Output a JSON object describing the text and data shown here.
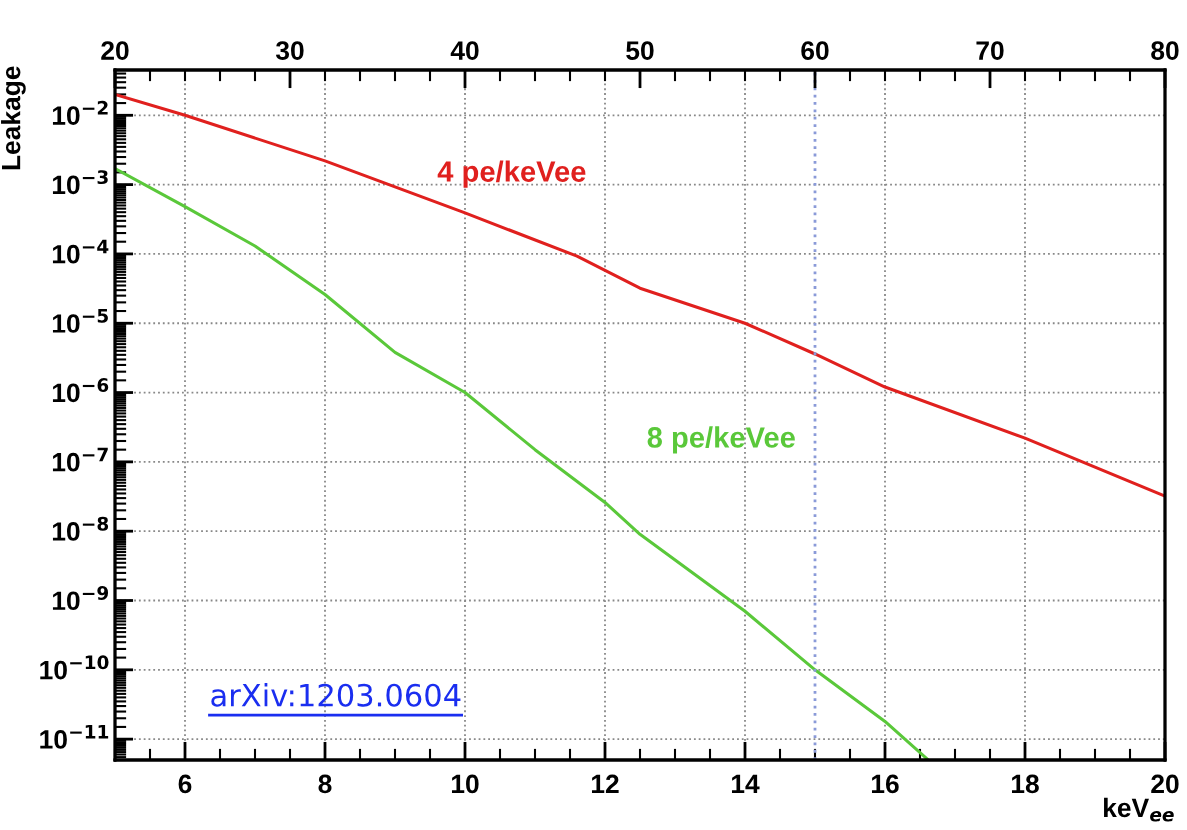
{
  "chart_data": {
    "type": "line",
    "ylabel": "Leakage",
    "xlabel": "keV$_{ee}$",
    "log": "y",
    "grid": true,
    "legend": false,
    "marker": "none",
    "line_style": "solid",
    "xlim": [
      5,
      20
    ],
    "xticks": [
      6,
      8,
      10,
      12,
      14,
      16,
      18,
      20
    ],
    "x2lim": [
      20,
      80
    ],
    "x2ticks": [
      20,
      30,
      40,
      50,
      60,
      70,
      80
    ],
    "ylim": [
      5e-12,
      0.045
    ],
    "yticks": [
      {
        "value": 0.01,
        "label": "10$^{−2}$"
      },
      {
        "value": 0.001,
        "label": "10$^{−3}$"
      },
      {
        "value": 0.0001,
        "label": "10$^{−4}$"
      },
      {
        "value": 1e-05,
        "label": "10$^{−5}$"
      },
      {
        "value": 1e-06,
        "label": "10$^{−6}$"
      },
      {
        "value": 1e-07,
        "label": "10$^{−7}$"
      },
      {
        "value": 1e-08,
        "label": "10$^{−8}$"
      },
      {
        "value": 1e-09,
        "label": "10$^{−9}$"
      },
      {
        "value": 1e-10,
        "label": "10$^{−10}$"
      },
      {
        "value": 1e-11,
        "label": "10$^{−11}$"
      }
    ],
    "series": [
      {
        "name": "4 pe/keVee",
        "color": "#e0201e",
        "x": [
          5,
          6,
          8,
          10,
          11.6,
          12.5,
          14,
          15,
          16,
          18,
          20
        ],
        "values": [
          0.02,
          0.01,
          0.0022,
          0.00039,
          9.3e-05,
          3.2e-05,
          1e-05,
          3.6e-06,
          1.2e-06,
          2.2e-07,
          3.2e-08
        ]
      },
      {
        "name": "8 pe/keVee",
        "color": "#5ac83a",
        "x": [
          5,
          6,
          7,
          8,
          9,
          10,
          11,
          12,
          12.5,
          14,
          15,
          16,
          16.6
        ],
        "values": [
          0.0017,
          0.00048,
          0.00013,
          2.6e-05,
          3.8e-06,
          1e-06,
          1.5e-07,
          2.6e-08,
          9e-09,
          7e-10,
          1e-10,
          1.8e-11,
          5.2e-12
        ]
      }
    ],
    "ref_lines": [
      {
        "axis": "x",
        "value": 15,
        "color": "#8a9ad8",
        "line_style": "dotted"
      }
    ],
    "annotations": [
      "arXiv:1203.0604"
    ]
  }
}
